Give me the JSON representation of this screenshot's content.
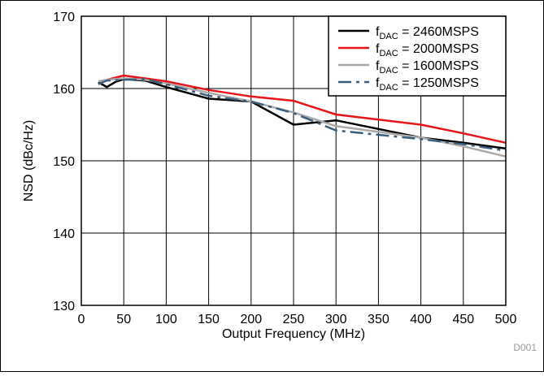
{
  "chart_data": {
    "type": "line",
    "xlabel": "Output Frequency (MHz)",
    "ylabel": "NSD (dBc/Hz)",
    "xlim": [
      0,
      500
    ],
    "ylim": [
      130,
      170
    ],
    "x_ticks": [
      0,
      50,
      100,
      150,
      200,
      250,
      300,
      350,
      400,
      450,
      500
    ],
    "y_ticks": [
      130,
      140,
      150,
      160,
      170
    ],
    "grid": true,
    "legend_position": "top-right",
    "figure_code": "D001",
    "series": [
      {
        "name_main": "f",
        "name_sub": "DAC",
        "name_rest": " = 2460MSPS",
        "color": "#000000",
        "dash": "solid",
        "x": [
          20,
          30,
          40,
          50,
          75,
          100,
          150,
          200,
          250,
          300,
          350,
          400,
          450,
          500
        ],
        "y": [
          160.9,
          160.2,
          160.9,
          161.3,
          161.1,
          160.2,
          158.6,
          158.2,
          155.0,
          155.6,
          154.4,
          153.2,
          152.5,
          151.7
        ]
      },
      {
        "name_main": "f",
        "name_sub": "DAC",
        "name_rest": " = 2000MSPS",
        "color": "#e8141c",
        "dash": "solid",
        "x": [
          20,
          30,
          50,
          75,
          100,
          150,
          200,
          250,
          300,
          350,
          400,
          450,
          500
        ],
        "y": [
          160.6,
          161.2,
          161.8,
          161.4,
          161.0,
          159.8,
          158.9,
          158.3,
          156.4,
          155.7,
          155.0,
          153.8,
          152.5
        ]
      },
      {
        "name_main": "f",
        "name_sub": "DAC",
        "name_rest": " = 1600MSPS",
        "color": "#aaaaaa",
        "dash": "solid",
        "x": [
          20,
          30,
          50,
          75,
          100,
          150,
          200,
          250,
          300,
          350,
          400,
          450,
          500
        ],
        "y": [
          161.0,
          161.2,
          161.4,
          161.2,
          160.7,
          159.4,
          158.2,
          156.7,
          154.8,
          154.0,
          153.2,
          152.0,
          150.6
        ]
      },
      {
        "name_main": "f",
        "name_sub": "DAC",
        "name_rest": " = 1250MSPS",
        "color": "#3a5f7d",
        "dash": "dashed",
        "x": [
          20,
          30,
          50,
          75,
          100,
          150,
          200,
          250,
          300,
          350,
          400,
          450,
          500
        ],
        "y": [
          160.6,
          161.1,
          161.2,
          161.3,
          160.6,
          159.0,
          158.2,
          156.6,
          154.2,
          153.6,
          153.0,
          152.3,
          151.4
        ]
      }
    ]
  }
}
